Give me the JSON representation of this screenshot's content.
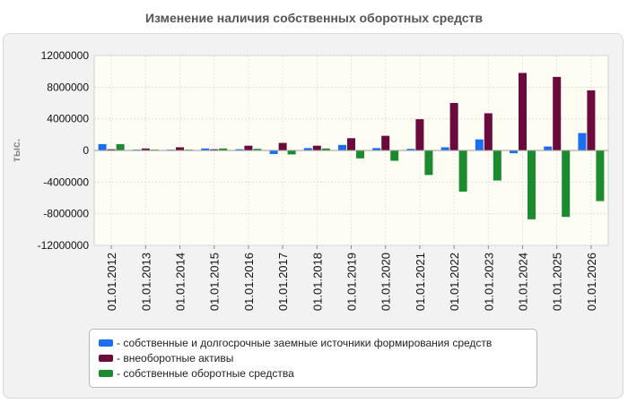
{
  "title": "Изменение наличия собственных оборотных средств",
  "colors": {
    "series1": "#1a6ef2",
    "series2": "#6b0a3c",
    "series3": "#1c8a2e",
    "plot_background": "#fdfdf4",
    "panel_background": "#f2f2f2"
  },
  "chart_data": {
    "type": "bar",
    "title": "Изменение наличия собственных оборотных средств",
    "xlabel": "",
    "ylabel": "тыс.",
    "ylim": [
      -12000000,
      12000000
    ],
    "y_ticks": [
      12000000,
      8000000,
      4000000,
      0,
      -4000000,
      -8000000,
      -12000000
    ],
    "y_tick_labels": [
      "12000000",
      "8000000",
      "4000000",
      "0",
      "-4000000",
      "-8000000",
      "-12000000"
    ],
    "grid": true,
    "legend_position": "bottom",
    "categories": [
      "01.01.2012",
      "01.01.2013",
      "01.01.2014",
      "01.01.2015",
      "01.01.2016",
      "01.01.2017",
      "01.01.2018",
      "01.01.2019",
      "01.01.2020",
      "01.01.2021",
      "01.01.2022",
      "01.01.2023",
      "01.01.2024",
      "01.01.2025",
      "01.01.2026"
    ],
    "series": [
      {
        "name": "собственные и долгосрочные заемные источники формирования средств",
        "values": [
          800000,
          100000,
          100000,
          250000,
          150000,
          -450000,
          300000,
          700000,
          300000,
          200000,
          400000,
          1400000,
          -350000,
          500000,
          2200000
        ]
      },
      {
        "name": "внеоборотные активы",
        "values": [
          150000,
          250000,
          400000,
          150000,
          600000,
          950000,
          600000,
          1550000,
          1850000,
          3950000,
          6000000,
          4700000,
          9800000,
          9300000,
          7600000
        ]
      },
      {
        "name": "собственные оборотные средства",
        "values": [
          800000,
          100000,
          100000,
          250000,
          200000,
          -500000,
          250000,
          -1000000,
          -1300000,
          -3100000,
          -5200000,
          -3800000,
          -8700000,
          -8400000,
          -6400000
        ]
      }
    ]
  }
}
